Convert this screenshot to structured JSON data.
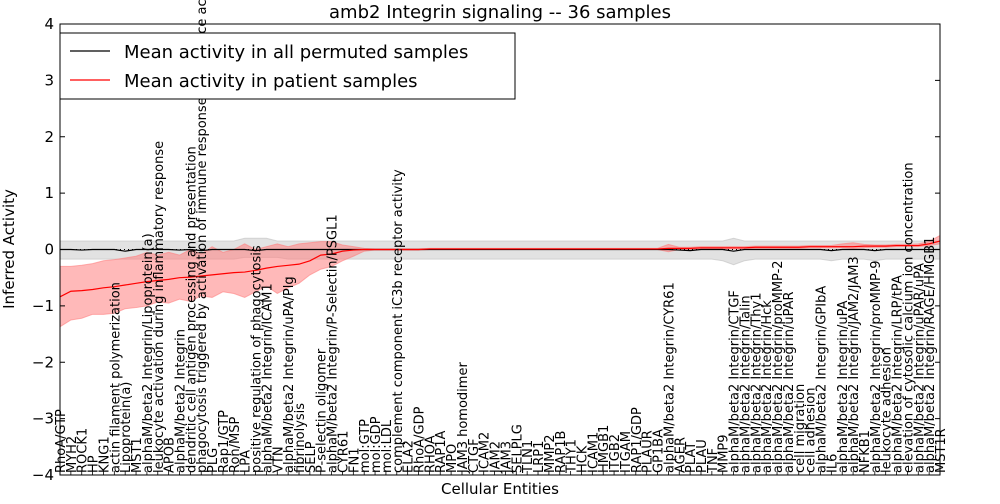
{
  "chart_data": {
    "type": "line",
    "title": "amb2 Integrin signaling -- 36 samples",
    "xlabel": "Cellular Entities",
    "ylabel": "Inferred Activity",
    "ylim": [
      -4,
      4
    ],
    "yticks": [
      -4,
      -3,
      -2,
      -1,
      0,
      1,
      2,
      3,
      4
    ],
    "ytick_labels": [
      "−4",
      "−3",
      "−2",
      "−1",
      "0",
      "1",
      "2",
      "3",
      "4"
    ],
    "legend_position": "top-left",
    "categories": [
      "RhoA/GTP",
      "MYH2",
      "ROCK1",
      "HP",
      "KNG1",
      "actin filament polymerization",
      "Lipoprotein(a)",
      "MST1",
      "alphaM/beta2 Integrin/Lipoprotein(a)",
      "leukocyte activation during inflammatory response",
      "APOB",
      "alphaM/beta2 Integrin",
      "dendritic cell antigen processing and presentation",
      "phagocytosis triggered by activation of immune response cell surface activating receptor",
      "PLG",
      "Rap1/GTP",
      "Ron/MSP",
      "LPA",
      "positive regulation of phagocytosis",
      "alphaM/beta2 Integrin/ICAM1",
      "VTN",
      "alphaM/beta2 Integrin/uPA/Plg",
      "fibrinolysis",
      "SELP",
      "P-selectin oligomer",
      "alphaM/beta2 Integrin/P-Selectin/PSGL1",
      "CYR61",
      "FN1",
      "mol:GTP",
      "mol:GDP",
      "mol:LDL",
      "complement component iC3b receptor activity",
      "ELA2",
      "RhoA/GDP",
      "RHOA",
      "RAP1A",
      "MPO",
      "JAM3 homodimer",
      "CTGF",
      "ICAM2",
      "JAM2",
      "JAM3",
      "SELPLG",
      "TLN1",
      "LRP1",
      "MMP2",
      "RAP1B",
      "THY1",
      "HCK",
      "ICAM1",
      "HMGB1",
      "ITGB2",
      "ITGAM",
      "RAP1/GDP",
      "PLAUR",
      "GP1BA",
      "alphaM/beta2 Integrin/CYR61",
      "AGER",
      "PLAT",
      "PLAU",
      "TNF",
      "MMP9",
      "alphaM/beta2 Integrin/CTGF",
      "alphaM/beta2 Integrin/Talin",
      "alphaM/beta2 Integrin/Thy1",
      "alphaM/beta2 Integrin/Hck",
      "alphaM/beta2 Integrin/proMMP-2",
      "alphaM/beta2 Integrin/uPAR",
      "cell migration",
      "cell adhesion",
      "alphaM/beta2 Integrin/GPIbA",
      "IL6",
      "alphaM/beta2 Integrin/uPA",
      "alphaM/beta2 Integrin/JAM2/JAM3",
      "NFKB1",
      "alphaM/beta2 Integrin/proMMP-9",
      "leukocyte adhesion",
      "alphaM/beta2 Integrin/LRP/tPA",
      "elevation of cytosolic calcium ion concentration",
      "alphaM/beta2 Integrin/uPAR/uPA",
      "alphaM/beta2 Integrin/RAGE/HMGB1",
      "MST1R"
    ],
    "series": [
      {
        "name": "Mean activity in all permuted samples",
        "color": "#000000",
        "band_color": "#bfbfbf",
        "values": [
          0,
          0,
          -0.01,
          0,
          0,
          0,
          -0.03,
          0,
          0,
          0,
          0,
          -0.01,
          0,
          -0.02,
          0,
          0,
          0,
          0,
          -0.02,
          0,
          0,
          0,
          0,
          0,
          0,
          0,
          0,
          0,
          0,
          0,
          0,
          0,
          0,
          0,
          0,
          0,
          0,
          0,
          0,
          0,
          0,
          0,
          0,
          0,
          0,
          0,
          0,
          0,
          0,
          0,
          0,
          0,
          0,
          0,
          0,
          0,
          0,
          -0.01,
          -0.02,
          0,
          0,
          0,
          -0.03,
          0,
          0,
          0,
          0,
          0,
          0,
          0,
          0,
          -0.02,
          0,
          0,
          0,
          -0.02,
          0,
          0,
          0,
          0,
          0,
          0
        ],
        "low": [
          -0.17,
          -0.17,
          -0.17,
          -0.17,
          -0.17,
          -0.17,
          -0.17,
          -0.17,
          -0.17,
          -0.17,
          -0.17,
          -0.17,
          -0.17,
          -0.17,
          -0.17,
          -0.17,
          -0.17,
          -0.14,
          -0.14,
          -0.14,
          -0.14,
          -0.17,
          -0.17,
          -0.17,
          -0.17,
          -0.17,
          -0.17,
          -0.17,
          -0.17,
          -0.17,
          -0.17,
          -0.17,
          -0.17,
          -0.17,
          -0.17,
          -0.17,
          -0.17,
          -0.17,
          -0.17,
          -0.17,
          -0.17,
          -0.17,
          -0.17,
          -0.17,
          -0.17,
          -0.17,
          -0.17,
          -0.17,
          -0.17,
          -0.17,
          -0.17,
          -0.17,
          -0.17,
          -0.17,
          -0.17,
          -0.17,
          -0.17,
          -0.17,
          -0.17,
          -0.17,
          -0.17,
          -0.2,
          -0.27,
          -0.2,
          -0.17,
          -0.17,
          -0.17,
          -0.17,
          -0.17,
          -0.17,
          -0.17,
          -0.2,
          -0.17,
          -0.17,
          -0.17,
          -0.2,
          -0.17,
          -0.17,
          -0.17,
          -0.17,
          -0.17,
          -0.17
        ],
        "high": [
          0.15,
          0.15,
          0.15,
          0.15,
          0.15,
          0.15,
          0.15,
          0.15,
          0.15,
          0.15,
          0.15,
          0.15,
          0.15,
          0.15,
          0.15,
          0.15,
          0.15,
          0.2,
          0.2,
          0.2,
          0.15,
          0.15,
          0.15,
          0.15,
          0.15,
          0.15,
          0.15,
          0.15,
          0.15,
          0.15,
          0.15,
          0.15,
          0.15,
          0.15,
          0.15,
          0.15,
          0.15,
          0.15,
          0.15,
          0.15,
          0.15,
          0.15,
          0.15,
          0.15,
          0.15,
          0.15,
          0.15,
          0.15,
          0.15,
          0.15,
          0.15,
          0.15,
          0.15,
          0.15,
          0.15,
          0.15,
          0.15,
          0.15,
          0.15,
          0.15,
          0.15,
          0.15,
          0.2,
          0.15,
          0.15,
          0.15,
          0.15,
          0.15,
          0.15,
          0.15,
          0.15,
          0.15,
          0.15,
          0.15,
          0.15,
          0.15,
          0.15,
          0.15,
          0.15,
          0.15,
          0.15,
          0.15
        ]
      },
      {
        "name": "Mean activity in patient samples",
        "color": "#ff0000",
        "band_color": "#ff7f7f",
        "values": [
          -0.84,
          -0.74,
          -0.73,
          -0.71,
          -0.68,
          -0.66,
          -0.63,
          -0.6,
          -0.57,
          -0.55,
          -0.53,
          -0.5,
          -0.49,
          -0.47,
          -0.45,
          -0.43,
          -0.41,
          -0.4,
          -0.37,
          -0.33,
          -0.3,
          -0.28,
          -0.26,
          -0.2,
          -0.1,
          -0.08,
          -0.03,
          -0.01,
          0,
          0,
          0,
          0,
          0,
          0,
          0.01,
          0.01,
          0.01,
          0.01,
          0.01,
          0.01,
          0.01,
          0.01,
          0.01,
          0.01,
          0.01,
          0.01,
          0.01,
          0.01,
          0.01,
          0.01,
          0.01,
          0.01,
          0.01,
          0.01,
          0.01,
          0.01,
          0.02,
          0.02,
          0.02,
          0.03,
          0.03,
          0.03,
          0.03,
          0.03,
          0.04,
          0.04,
          0.04,
          0.04,
          0.04,
          0.05,
          0.05,
          0.05,
          0.05,
          0.05,
          0.06,
          0.06,
          0.06,
          0.07,
          0.07,
          0.07,
          0.1,
          0.15
        ],
        "low": [
          -1.37,
          -1.25,
          -1.22,
          -1.15,
          -1.15,
          -1.13,
          -1.05,
          -1.03,
          -1.0,
          -0.93,
          -0.95,
          -0.88,
          -0.92,
          -0.82,
          -0.85,
          -0.75,
          -0.78,
          -0.85,
          -0.75,
          -0.65,
          -0.78,
          -0.68,
          -0.6,
          -0.45,
          -0.35,
          -0.3,
          -0.2,
          -0.12,
          -0.03,
          -0.01,
          -0.01,
          -0.01,
          -0.01,
          -0.01,
          0,
          0,
          0,
          0,
          0,
          0,
          0,
          0,
          0,
          0,
          0,
          0,
          0,
          0,
          0,
          0,
          0,
          0,
          0,
          0,
          0,
          0,
          -0.04,
          0,
          0,
          0.01,
          0.01,
          0.01,
          0.01,
          0.01,
          0.02,
          0.02,
          0.02,
          0.02,
          0.02,
          0.03,
          0.03,
          0.03,
          0.03,
          0.02,
          0.03,
          0.04,
          0.04,
          0.05,
          0.05,
          0.05,
          0.07,
          0.1
        ],
        "high": [
          -0.3,
          -0.3,
          -0.28,
          -0.25,
          -0.2,
          -0.18,
          -0.15,
          -0.12,
          -0.05,
          -0.1,
          -0.05,
          -0.1,
          0,
          -0.08,
          0.05,
          -0.05,
          0,
          0.1,
          0,
          0.05,
          0.1,
          0.05,
          0.1,
          0.12,
          0.14,
          0.14,
          0.08,
          0.05,
          0.02,
          0.01,
          0.01,
          0.01,
          0.01,
          0.01,
          0.02,
          0.02,
          0.02,
          0.02,
          0.02,
          0.02,
          0.02,
          0.02,
          0.02,
          0.02,
          0.02,
          0.02,
          0.02,
          0.02,
          0.02,
          0.02,
          0.02,
          0.02,
          0.02,
          0.02,
          0.02,
          0.02,
          0.09,
          0.04,
          0.04,
          0.05,
          0.05,
          0.05,
          0.05,
          0.05,
          0.06,
          0.06,
          0.06,
          0.06,
          0.06,
          0.07,
          0.07,
          0.07,
          0.1,
          0.12,
          0.09,
          0.08,
          0.08,
          0.09,
          0.09,
          0.1,
          0.14,
          0.25
        ]
      }
    ]
  }
}
